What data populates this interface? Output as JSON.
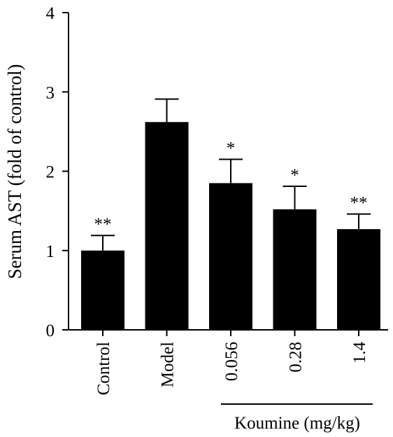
{
  "chart_data": {
    "type": "bar",
    "title": "",
    "xlabel": "",
    "ylabel": "Serum AST (fold of control)",
    "categories": [
      "Control",
      "Model",
      "0.056",
      "0.28",
      "1.4"
    ],
    "values": [
      1.0,
      2.62,
      1.85,
      1.52,
      1.27
    ],
    "errors": [
      0.19,
      0.29,
      0.3,
      0.29,
      0.19
    ],
    "significance": [
      "**",
      "",
      "*",
      "*",
      "**"
    ],
    "ylim": [
      0,
      4
    ],
    "yticks": [
      "0",
      "1",
      "2",
      "3",
      "4"
    ],
    "group_label": "Koumine (mg/kg)",
    "bar_color": "#000000",
    "grid": false,
    "legend": "none"
  }
}
